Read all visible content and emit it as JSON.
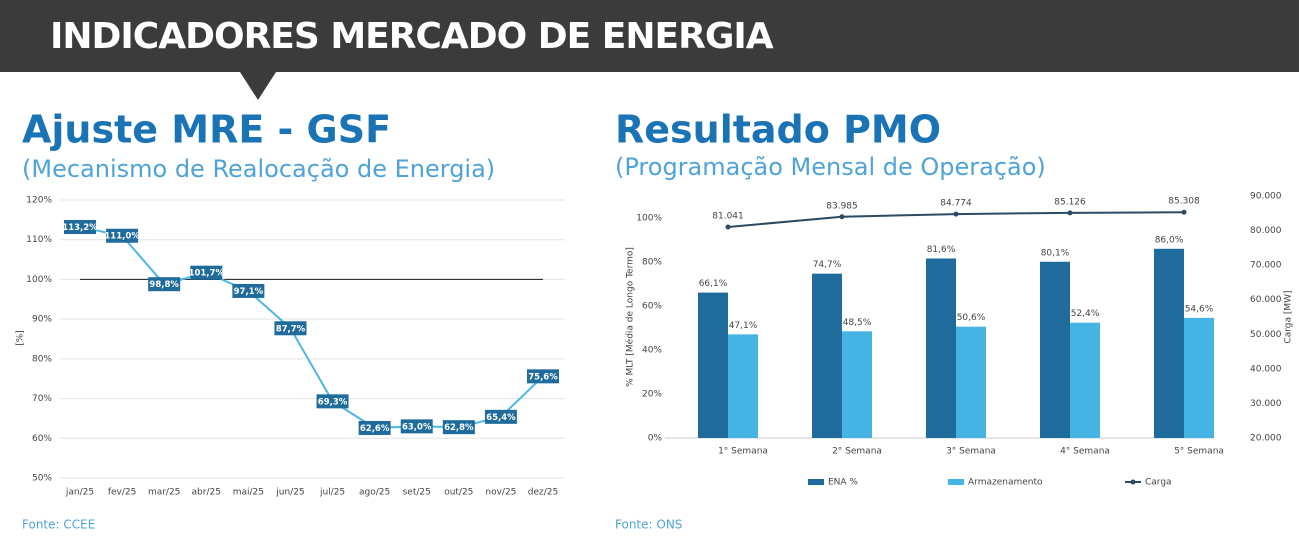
{
  "header": {
    "title": "INDICADORES MERCADO DE ENERGIA"
  },
  "chart_data": [
    {
      "type": "line",
      "title": "Ajuste MRE - GSF",
      "subtitle": "(Mecanismo de Realocação de Energia)",
      "source": "Fonte: CCEE",
      "ylabel": "[%]",
      "categories": [
        "jan/25",
        "fev/25",
        "mar/25",
        "abr/25",
        "mai/25",
        "jun/25",
        "jul/25",
        "ago/25",
        "set/25",
        "out/25",
        "nov/25",
        "dez/25"
      ],
      "values": [
        113.2,
        111.0,
        98.8,
        101.7,
        97.1,
        87.7,
        69.3,
        62.6,
        63.0,
        62.8,
        65.4,
        75.6
      ],
      "value_labels": [
        "113,2%",
        "111,0%",
        "98,8%",
        "101,7%",
        "97,1%",
        "87,7%",
        "69,3%",
        "62,6%",
        "63,0%",
        "62,8%",
        "65,4%",
        "75,6%"
      ],
      "color": "#4cb6e6",
      "label_color": "#1f6c9c",
      "reference_line": 100,
      "ylim": [
        50,
        120
      ],
      "yticks": [
        {
          "value": 50,
          "label": "50%"
        },
        {
          "value": 60,
          "label": "60%"
        },
        {
          "value": 70,
          "label": "70%"
        },
        {
          "value": 80,
          "label": "80%"
        },
        {
          "value": 90,
          "label": "90%"
        },
        {
          "value": 100,
          "label": "100%"
        },
        {
          "value": 110,
          "label": "110%"
        },
        {
          "value": 120,
          "label": "120%"
        }
      ],
      "grid": true
    },
    {
      "type": "bar",
      "title": "Resultado PMO",
      "subtitle": "(Programação Mensal de Operação)",
      "source": "Fonte: ONS",
      "ylabel": "% MLT [Média de Longo Termo]",
      "y2label": "Carga [MW]",
      "categories": [
        "1° Semana",
        "2° Semana",
        "3° Semana",
        "4° Semana",
        "5° Semana"
      ],
      "series": [
        {
          "name": "ENA %",
          "color": "#1f6c9c",
          "values": [
            66.1,
            74.7,
            81.6,
            80.1,
            86.0
          ],
          "value_labels": [
            "66,1%",
            "74,7%",
            "81,6%",
            "80,1%",
            "86,0%"
          ]
        },
        {
          "name": "Armazenamento",
          "color": "#45b4e5",
          "values": [
            47.1,
            48.5,
            50.6,
            52.4,
            54.6
          ],
          "value_labels": [
            "47,1%",
            "48,5%",
            "50,6%",
            "52,4%",
            "54,6%"
          ]
        },
        {
          "name": "Carga",
          "type": "line",
          "axis": "y2",
          "color": "#2d4a63",
          "values": [
            81041,
            83985,
            84774,
            85126,
            85308
          ],
          "value_labels": [
            "81.041",
            "83.985",
            "84.774",
            "85.126",
            "85.308"
          ]
        }
      ],
      "ylim": [
        0,
        110
      ],
      "yticks": [
        {
          "value": 0,
          "label": "0%"
        },
        {
          "value": 20,
          "label": "20%"
        },
        {
          "value": 40,
          "label": "40%"
        },
        {
          "value": 60,
          "label": "60%"
        },
        {
          "value": 80,
          "label": "80%"
        },
        {
          "value": 100,
          "label": "100%"
        }
      ],
      "y2lim": [
        20000,
        90000
      ],
      "y2ticks": [
        {
          "value": 20000,
          "label": "20.000"
        },
        {
          "value": 30000,
          "label": "30.000"
        },
        {
          "value": 40000,
          "label": "40.000"
        },
        {
          "value": 50000,
          "label": "50.000"
        },
        {
          "value": 60000,
          "label": "60.000"
        },
        {
          "value": 70000,
          "label": "70.000"
        },
        {
          "value": 80000,
          "label": "80.000"
        },
        {
          "value": 90000,
          "label": "90.000"
        }
      ],
      "grid": true
    }
  ]
}
